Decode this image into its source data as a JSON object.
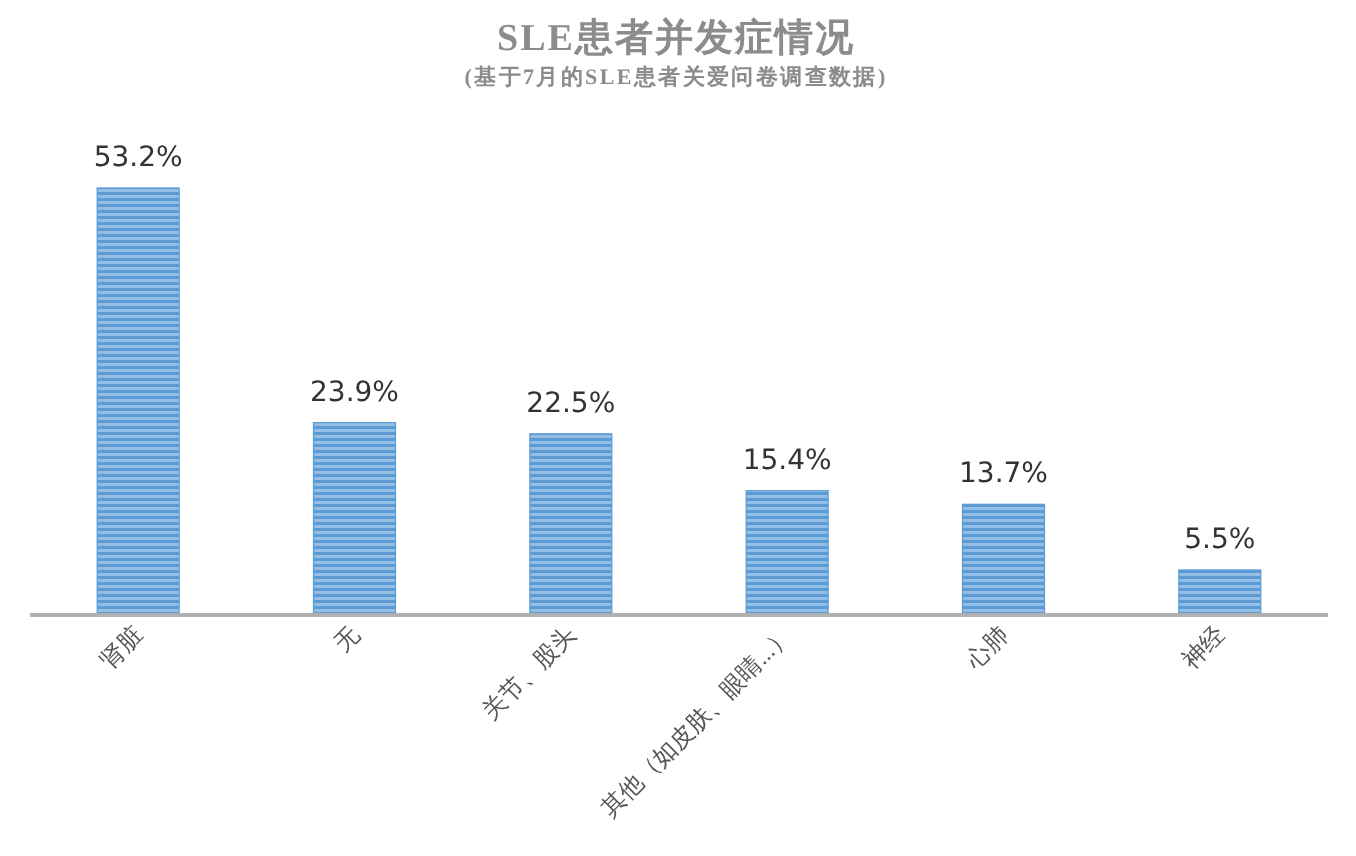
{
  "chart_data": {
    "type": "bar",
    "title": "SLE患者并发症情况",
    "subtitle": "(基于7月的SLE患者关爱问卷调查数据)",
    "categories": [
      "肾脏",
      "无",
      "关节、股头",
      "其他（如皮肤、眼睛...）",
      "心肺",
      "神经"
    ],
    "values": [
      53.2,
      23.9,
      22.5,
      15.4,
      13.7,
      5.5
    ],
    "value_labels": [
      "53.2%",
      "23.9%",
      "22.5%",
      "15.4%",
      "13.7%",
      "5.5%"
    ],
    "color": "#5b9bd5"
  }
}
